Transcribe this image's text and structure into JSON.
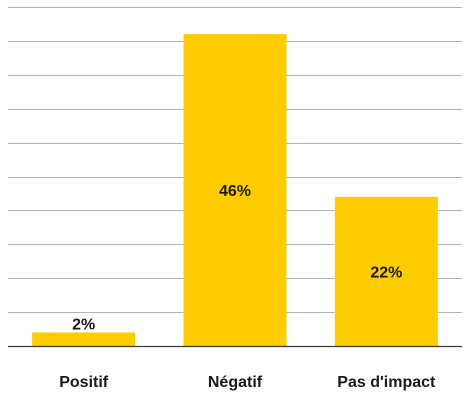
{
  "colors": {
    "bar": "#ffcc00",
    "grid": "#b3b3b3",
    "text": "#1a1a1a"
  },
  "chart_data": {
    "type": "bar",
    "title": "",
    "xlabel": "",
    "ylabel": "",
    "categories": [
      "Positif",
      "Négatif",
      "Pas d'impact"
    ],
    "values": [
      2,
      46,
      22
    ],
    "data_labels": [
      "2%",
      "46%",
      "22%"
    ],
    "ylim": [
      0,
      50
    ],
    "grid": true,
    "legend": "none"
  }
}
